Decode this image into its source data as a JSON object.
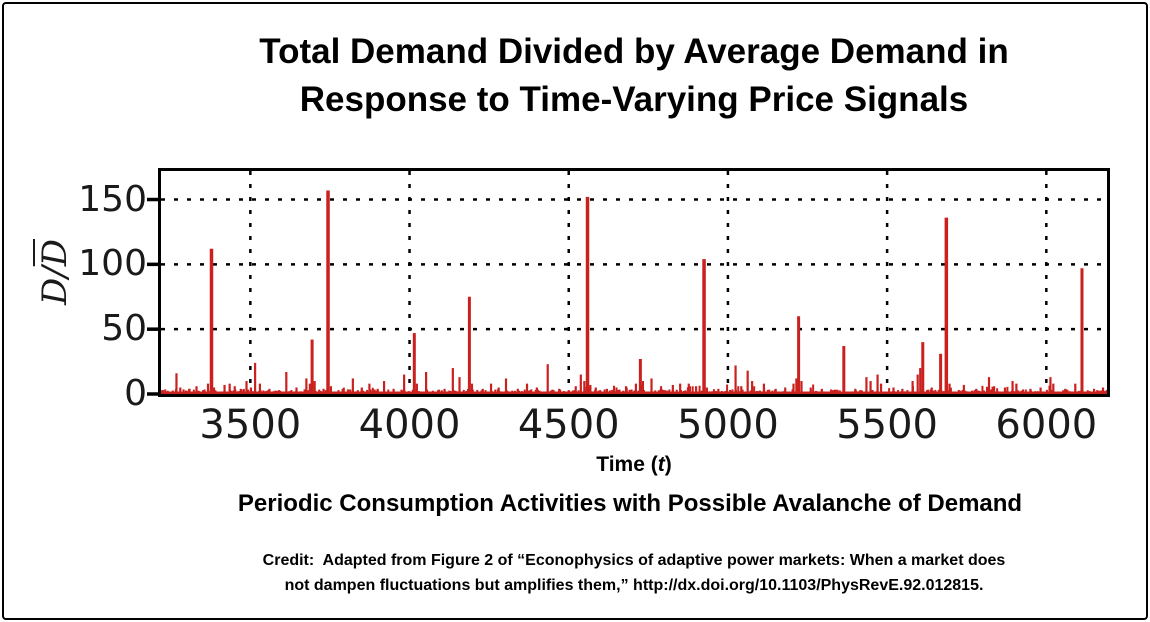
{
  "figure": {
    "title_line1": "Total Demand Divided by Average Demand in",
    "title_line2": "Response to Time-Varying Price Signals",
    "ylabel_num": "D",
    "ylabel_slash": "/",
    "ylabel_den": "D",
    "xlabel_prefix": "Time (",
    "xlabel_var": "t",
    "xlabel_suffix": ")",
    "subtitle": "Periodic Consumption Activities with Possible Avalanche of Demand",
    "credit_line1": "Credit:  Adapted from Figure 2 of “Econophysics of adaptive power markets: When a market does",
    "credit_line2": "not dampen fluctuations but amplifies them,” http://dx.doi.org/10.1103/PhysRevE.92.012815."
  },
  "chart_data": {
    "type": "bar",
    "title": "Total Demand Divided by Average Demand in Response to Time-Varying Price Signals",
    "subtitle": "Periodic Consumption Activities with Possible Avalanche of Demand",
    "xlabel": "Time (t)",
    "ylabel": "D/D̄",
    "xlim": [
      3210,
      6200
    ],
    "ylim": [
      0,
      172
    ],
    "xticks": [
      3500,
      4000,
      4500,
      5000,
      5500,
      6000
    ],
    "yticks": [
      0,
      50,
      100,
      150
    ],
    "grid": "dashed",
    "legend": "none",
    "series_color": "#ca201e",
    "axis_color": "#000000",
    "spikes": [
      [
        3268,
        16
      ],
      [
        3280,
        5
      ],
      [
        3309,
        4
      ],
      [
        3331,
        6
      ],
      [
        3352,
        3
      ],
      [
        3367,
        8
      ],
      [
        3378,
        112
      ],
      [
        3386,
        5
      ],
      [
        3419,
        7
      ],
      [
        3435,
        8
      ],
      [
        3451,
        6
      ],
      [
        3470,
        4
      ],
      [
        3488,
        10
      ],
      [
        3502,
        5
      ],
      [
        3515,
        24
      ],
      [
        3530,
        8
      ],
      [
        3560,
        4
      ],
      [
        3590,
        3
      ],
      [
        3613,
        17
      ],
      [
        3645,
        5
      ],
      [
        3676,
        12
      ],
      [
        3687,
        8
      ],
      [
        3694,
        42
      ],
      [
        3702,
        10
      ],
      [
        3730,
        4
      ],
      [
        3744,
        157
      ],
      [
        3753,
        6
      ],
      [
        3790,
        4
      ],
      [
        3822,
        12
      ],
      [
        3850,
        5
      ],
      [
        3874,
        8
      ],
      [
        3900,
        4
      ],
      [
        3920,
        10
      ],
      [
        3950,
        4
      ],
      [
        3983,
        15
      ],
      [
        4015,
        47
      ],
      [
        4023,
        8
      ],
      [
        4052,
        17
      ],
      [
        4090,
        3
      ],
      [
        4110,
        4
      ],
      [
        4136,
        20
      ],
      [
        4157,
        13
      ],
      [
        4188,
        75
      ],
      [
        4196,
        8
      ],
      [
        4230,
        4
      ],
      [
        4256,
        8
      ],
      [
        4280,
        5
      ],
      [
        4303,
        12
      ],
      [
        4340,
        4
      ],
      [
        4369,
        8
      ],
      [
        4400,
        5
      ],
      [
        4434,
        23
      ],
      [
        4470,
        4
      ],
      [
        4500,
        3
      ],
      [
        4522,
        6
      ],
      [
        4538,
        15
      ],
      [
        4549,
        10
      ],
      [
        4559,
        152
      ],
      [
        4568,
        7
      ],
      [
        4585,
        5
      ],
      [
        4620,
        4
      ],
      [
        4650,
        5
      ],
      [
        4680,
        6
      ],
      [
        4711,
        8
      ],
      [
        4725,
        27
      ],
      [
        4733,
        10
      ],
      [
        4760,
        12
      ],
      [
        4790,
        6
      ],
      [
        4827,
        7
      ],
      [
        4850,
        8
      ],
      [
        4877,
        8
      ],
      [
        4900,
        6
      ],
      [
        4925,
        104
      ],
      [
        4934,
        5
      ],
      [
        4970,
        4
      ],
      [
        5024,
        22
      ],
      [
        5042,
        6
      ],
      [
        5062,
        18
      ],
      [
        5076,
        10
      ],
      [
        5113,
        8
      ],
      [
        5150,
        4
      ],
      [
        5180,
        5
      ],
      [
        5206,
        8
      ],
      [
        5215,
        12
      ],
      [
        5222,
        60
      ],
      [
        5231,
        10
      ],
      [
        5260,
        5
      ],
      [
        5295,
        4
      ],
      [
        5330,
        3
      ],
      [
        5364,
        37
      ],
      [
        5400,
        4
      ],
      [
        5435,
        13
      ],
      [
        5448,
        10
      ],
      [
        5470,
        15
      ],
      [
        5481,
        8
      ],
      [
        5520,
        5
      ],
      [
        5548,
        4
      ],
      [
        5580,
        10
      ],
      [
        5596,
        15
      ],
      [
        5604,
        20
      ],
      [
        5612,
        40
      ],
      [
        5640,
        5
      ],
      [
        5668,
        31
      ],
      [
        5686,
        136
      ],
      [
        5696,
        8
      ],
      [
        5741,
        7
      ],
      [
        5780,
        4
      ],
      [
        5820,
        13
      ],
      [
        5836,
        6
      ],
      [
        5870,
        5
      ],
      [
        5894,
        10
      ],
      [
        5906,
        8
      ],
      [
        5950,
        4
      ],
      [
        5982,
        5
      ],
      [
        6013,
        13
      ],
      [
        6022,
        8
      ],
      [
        6060,
        4
      ],
      [
        6091,
        8
      ],
      [
        6112,
        97
      ],
      [
        6150,
        4
      ],
      [
        6178,
        5
      ],
      [
        6196,
        6
      ]
    ],
    "baseline_noise": {
      "floor": 1,
      "amplitude_max": 4,
      "description": "dense low-level demand fluctuation along entire time axis"
    }
  }
}
